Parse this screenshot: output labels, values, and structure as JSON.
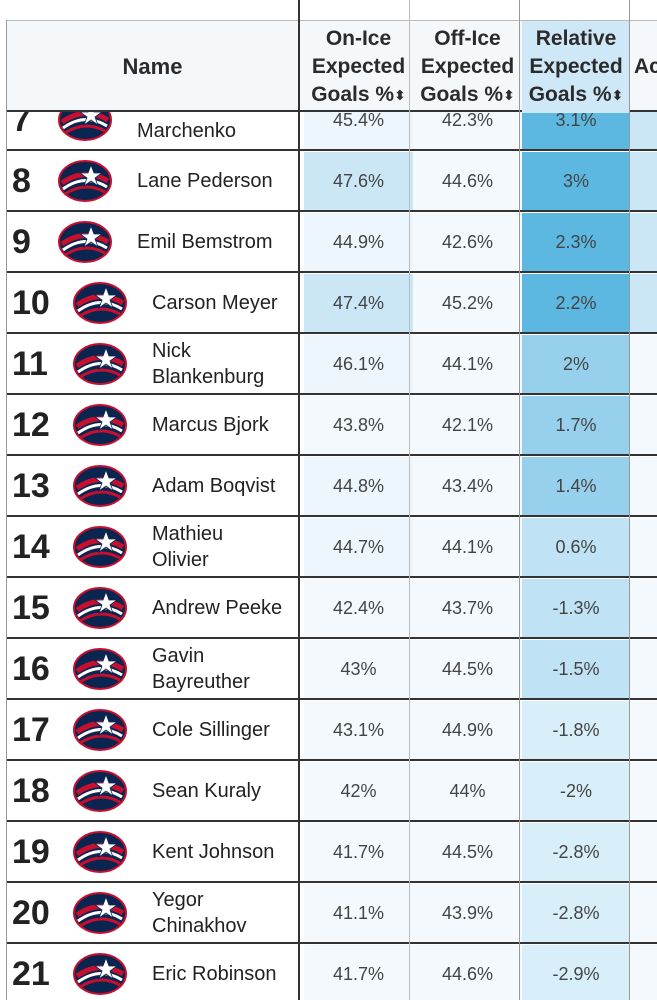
{
  "header": {
    "name": "Name",
    "on_ice": [
      "On-Ice",
      "Expected",
      "Goals %"
    ],
    "off_ice": [
      "Off-Ice",
      "Expected",
      "Goals %"
    ],
    "relative": [
      "Relative",
      "Expected",
      "Goals %"
    ],
    "adjusted_partial": "Ac",
    "sort_icon": "sort-updown-icon"
  },
  "colors": {
    "rel_column_strong": "#5cb8e0",
    "rel_column_mid": "#9ad2ee",
    "on_ice_highlight": "#cbe7f6",
    "light_cell": "#eef7fc"
  },
  "rows": [
    {
      "rank": "7",
      "name": "Kirill Marchenko",
      "name_visible": "Marchenko",
      "on": "45.4%",
      "off": "42.3%",
      "rel": "3.1%"
    },
    {
      "rank": "8",
      "name": "Lane Pederson",
      "on": "47.6%",
      "off": "44.6%",
      "rel": "3%"
    },
    {
      "rank": "9",
      "name": "Emil Bemstrom",
      "on": "44.9%",
      "off": "42.6%",
      "rel": "2.3%"
    },
    {
      "rank": "10",
      "name": "Carson Meyer",
      "on": "47.4%",
      "off": "45.2%",
      "rel": "2.2%"
    },
    {
      "rank": "11",
      "name": "Nick Blankenburg",
      "name_lines": [
        "Nick",
        "Blankenburg"
      ],
      "on": "46.1%",
      "off": "44.1%",
      "rel": "2%"
    },
    {
      "rank": "12",
      "name": "Marcus Bjork",
      "on": "43.8%",
      "off": "42.1%",
      "rel": "1.7%"
    },
    {
      "rank": "13",
      "name": "Adam Boqvist",
      "on": "44.8%",
      "off": "43.4%",
      "rel": "1.4%"
    },
    {
      "rank": "14",
      "name": "Mathieu Olivier",
      "name_lines": [
        "Mathieu",
        "Olivier"
      ],
      "on": "44.7%",
      "off": "44.1%",
      "rel": "0.6%"
    },
    {
      "rank": "15",
      "name": "Andrew Peeke",
      "on": "42.4%",
      "off": "43.7%",
      "rel": "-1.3%"
    },
    {
      "rank": "16",
      "name": "Gavin Bayreuther",
      "name_lines": [
        "Gavin",
        "Bayreuther"
      ],
      "on": "43%",
      "off": "44.5%",
      "rel": "-1.5%"
    },
    {
      "rank": "17",
      "name": "Cole Sillinger",
      "on": "43.1%",
      "off": "44.9%",
      "rel": "-1.8%"
    },
    {
      "rank": "18",
      "name": "Sean Kuraly",
      "on": "42%",
      "off": "44%",
      "rel": "-2%"
    },
    {
      "rank": "19",
      "name": "Kent Johnson",
      "on": "41.7%",
      "off": "44.5%",
      "rel": "-2.8%"
    },
    {
      "rank": "20",
      "name": "Yegor Chinakhov",
      "name_lines": [
        "Yegor",
        "Chinakhov"
      ],
      "on": "41.1%",
      "off": "43.9%",
      "rel": "-2.8%"
    },
    {
      "rank": "21",
      "name": "Eric Robinson",
      "on": "41.7%",
      "off": "44.6%",
      "rel": "-2.9%"
    }
  ],
  "team_logo": "blue-jackets-logo-icon"
}
